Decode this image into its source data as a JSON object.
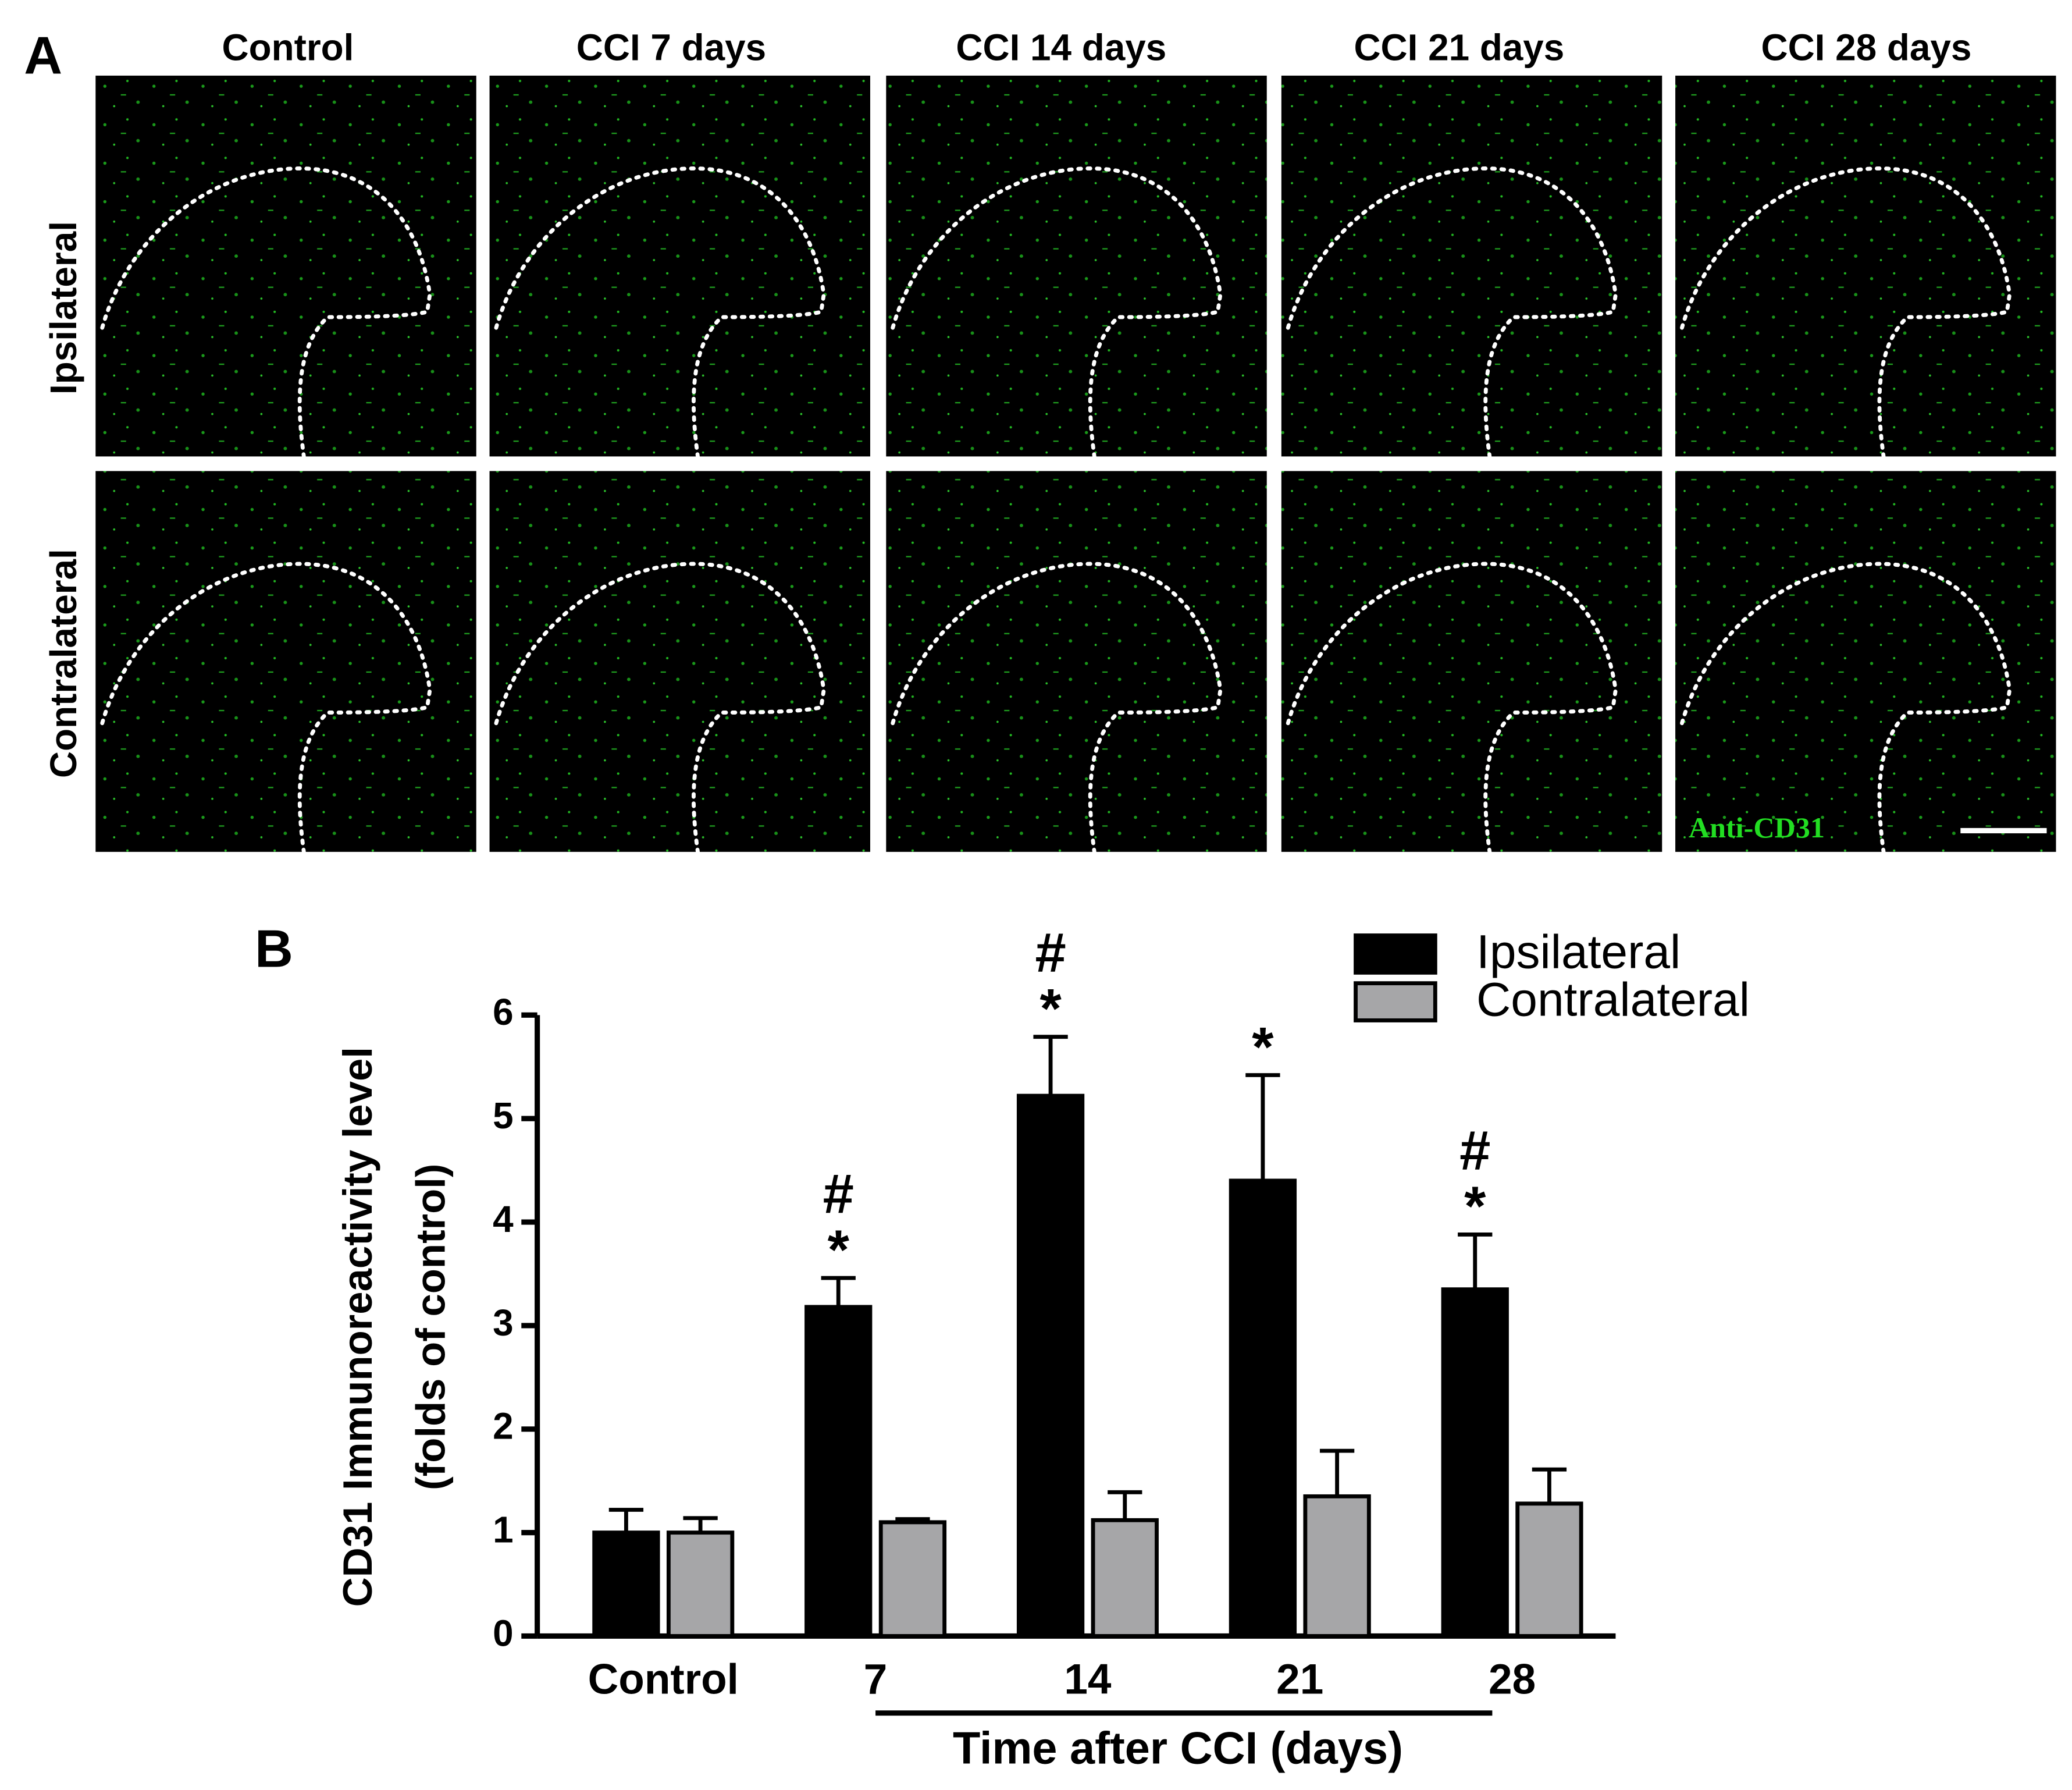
{
  "panel_a": {
    "label": "A",
    "columns": [
      "Control",
      "CCI 7 days",
      "CCI 14 days",
      "CCI 21 days",
      "CCI 28 days"
    ],
    "rows": [
      "Ipsilateral",
      "Contralateral"
    ],
    "stain_label": "Anti-CD31"
  },
  "chart_data": {
    "type": "bar",
    "panel_label": "B",
    "y_label": [
      "CD31 Immunoreactivity level",
      "(folds of control)"
    ],
    "x_label": "Time after CCI (days)",
    "categories": [
      "Control",
      "7",
      "14",
      "21",
      "28"
    ],
    "series": [
      {
        "name": "Ipsilateral",
        "color": "#000000",
        "values": [
          1.0,
          3.18,
          5.22,
          4.4,
          3.35
        ],
        "errors": [
          0.22,
          0.28,
          0.57,
          1.02,
          0.53
        ]
      },
      {
        "name": "Contralateral",
        "color": "#a6a6a8",
        "values": [
          1.0,
          1.1,
          1.12,
          1.35,
          1.28
        ],
        "errors": [
          0.14,
          0.03,
          0.27,
          0.44,
          0.33
        ]
      }
    ],
    "ylim": [
      0,
      6
    ],
    "yticks": [
      0,
      1,
      2,
      3,
      4,
      5,
      6
    ],
    "grid": false,
    "legend": "upper right",
    "annotations": [
      {
        "category": "7",
        "series": "Ipsilateral",
        "labels": [
          "#",
          "*"
        ]
      },
      {
        "category": "14",
        "series": "Ipsilateral",
        "labels": [
          "#",
          "*"
        ]
      },
      {
        "category": "21",
        "series": "Ipsilateral",
        "labels": [
          "*"
        ]
      },
      {
        "category": "28",
        "series": "Ipsilateral",
        "labels": [
          "#",
          "*"
        ]
      }
    ]
  }
}
